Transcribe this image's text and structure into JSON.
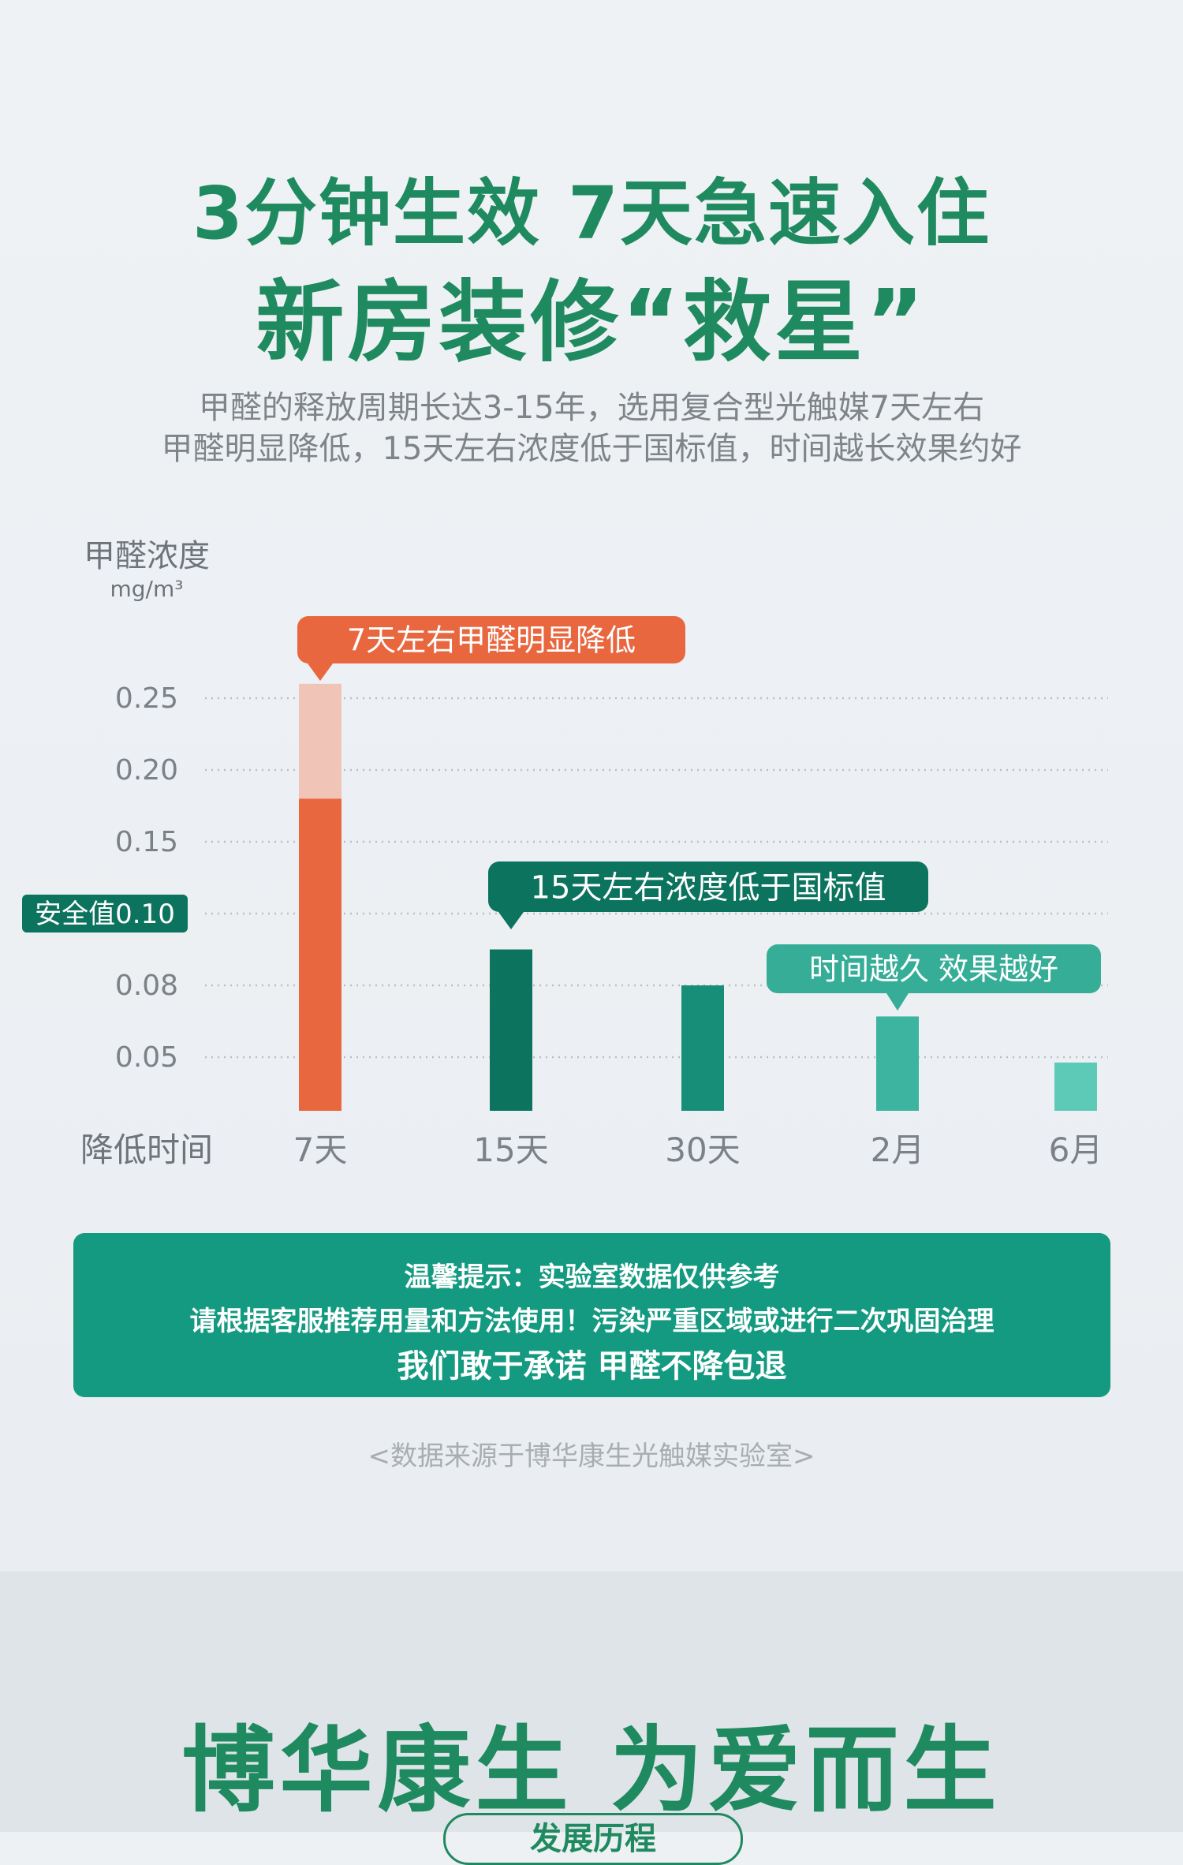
{
  "header": {
    "line1": "3分钟生效 7天急速入住",
    "line2": "新房装修“救星”",
    "sub1": "甲醛的释放周期长达3-15年，选用复合型光触媒7天左右",
    "sub2": "甲醛明显降低，15天左右浓度低于国标值，时间越长效果约好"
  },
  "chart_data": {
    "type": "bar",
    "ylabel": "甲醛浓度",
    "yunit": "mg/m³",
    "xlabel": "降低时间",
    "categories": [
      "7天",
      "15天",
      "30天",
      "2月",
      "6月"
    ],
    "values": [
      0.26,
      0.09,
      0.08,
      0.067,
      0.045
    ],
    "highlight_value_7d": 0.18,
    "yticks": [
      "0.05",
      "0.08",
      "0.10",
      "0.15",
      "0.20",
      "0.25"
    ],
    "safe_label": "安全值0.10",
    "annotations": [
      "7天左右甲醛明显降低",
      "15天左右浓度低于国标值",
      "时间越久 效果越好"
    ],
    "colors": [
      "#e8673f",
      "#0b735e",
      "#178f78",
      "#3db49f",
      "#5ccab6"
    ],
    "light_color": "#f0c4b6"
  },
  "tip": {
    "line1": "温馨提示：实验室数据仅供参考",
    "line2": "请根据客服推荐用量和方法使用！污染严重区域或进行二次巩固治理",
    "line3": "我们敢于承诺 甲醛不降包退"
  },
  "source": "<数据来源于博华康生光触媒实验室>",
  "footer": {
    "slogan": "博华康生 为爱而生",
    "pill": "发展历程"
  }
}
